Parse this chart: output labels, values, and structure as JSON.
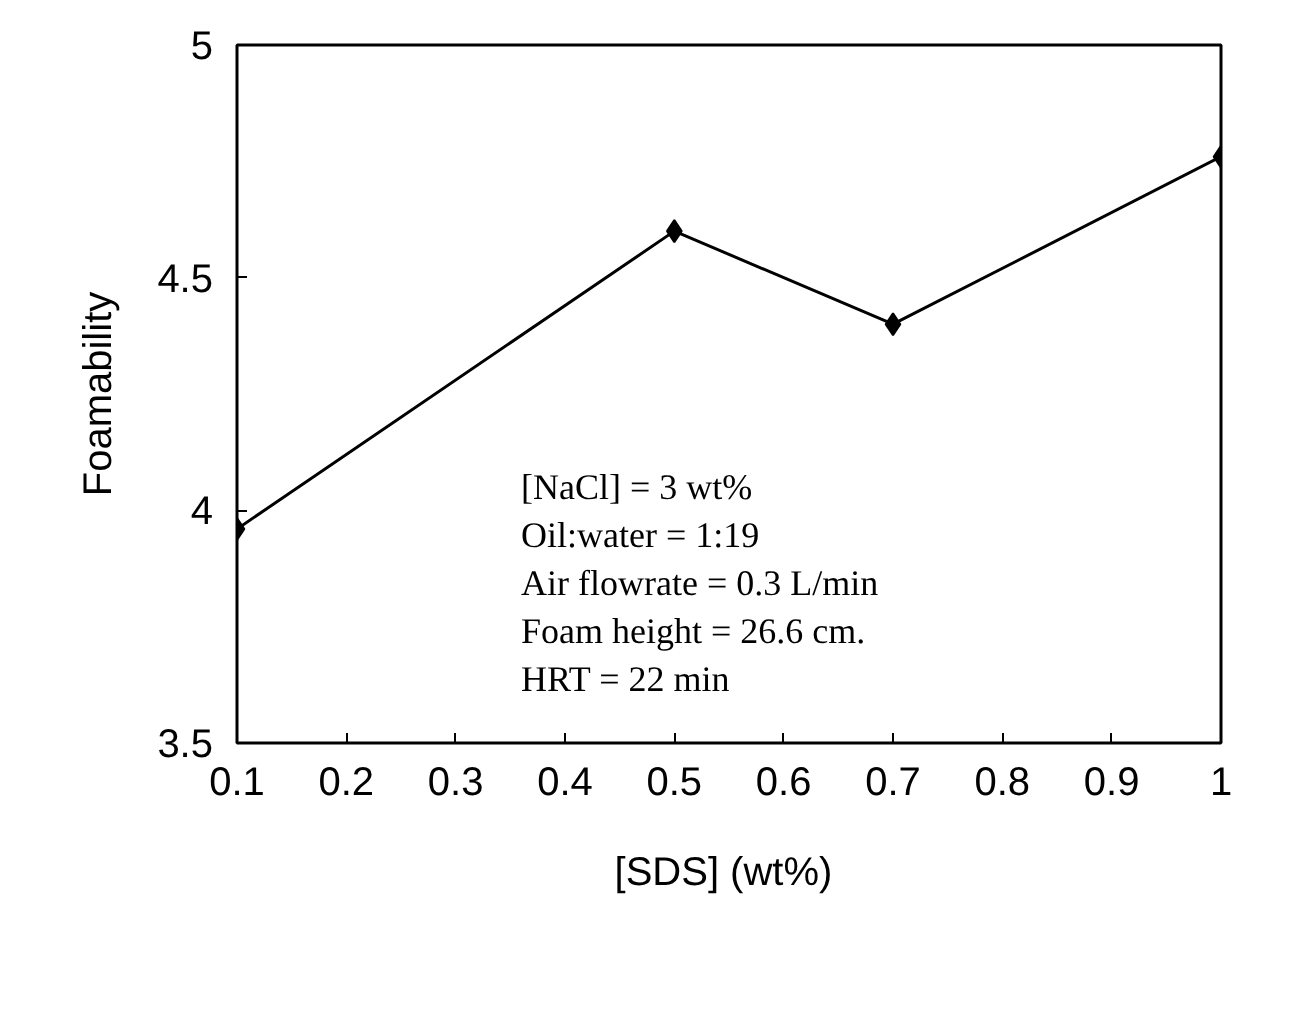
{
  "chart_data": {
    "type": "line",
    "xlabel": "[SDS]  (wt%)",
    "ylabel": "Foamability",
    "x": [
      0.1,
      0.5,
      0.7,
      1.0
    ],
    "series": [
      {
        "color": "#000000",
        "values": [
          3.96,
          4.6,
          4.4,
          4.76
        ]
      }
    ],
    "xlim": [
      0.1,
      1.0
    ],
    "ylim": [
      3.5,
      5.0
    ],
    "xticks": [
      0.1,
      0.2,
      0.3,
      0.4,
      0.5,
      0.6,
      0.7,
      0.8,
      0.9,
      {
        "value": 1.0,
        "label": "1"
      }
    ],
    "yticks": [
      3.5,
      4,
      4.5,
      5
    ],
    "marker": "diamond",
    "line_style": "solid",
    "grid": false,
    "annotations": [
      "[NaCl] = 3 wt%",
      "Oil:water = 1:19",
      "Air flowrate = 0.3 L/min",
      "Foam height = 26.6 cm.",
      "HRT = 22 min"
    ]
  }
}
